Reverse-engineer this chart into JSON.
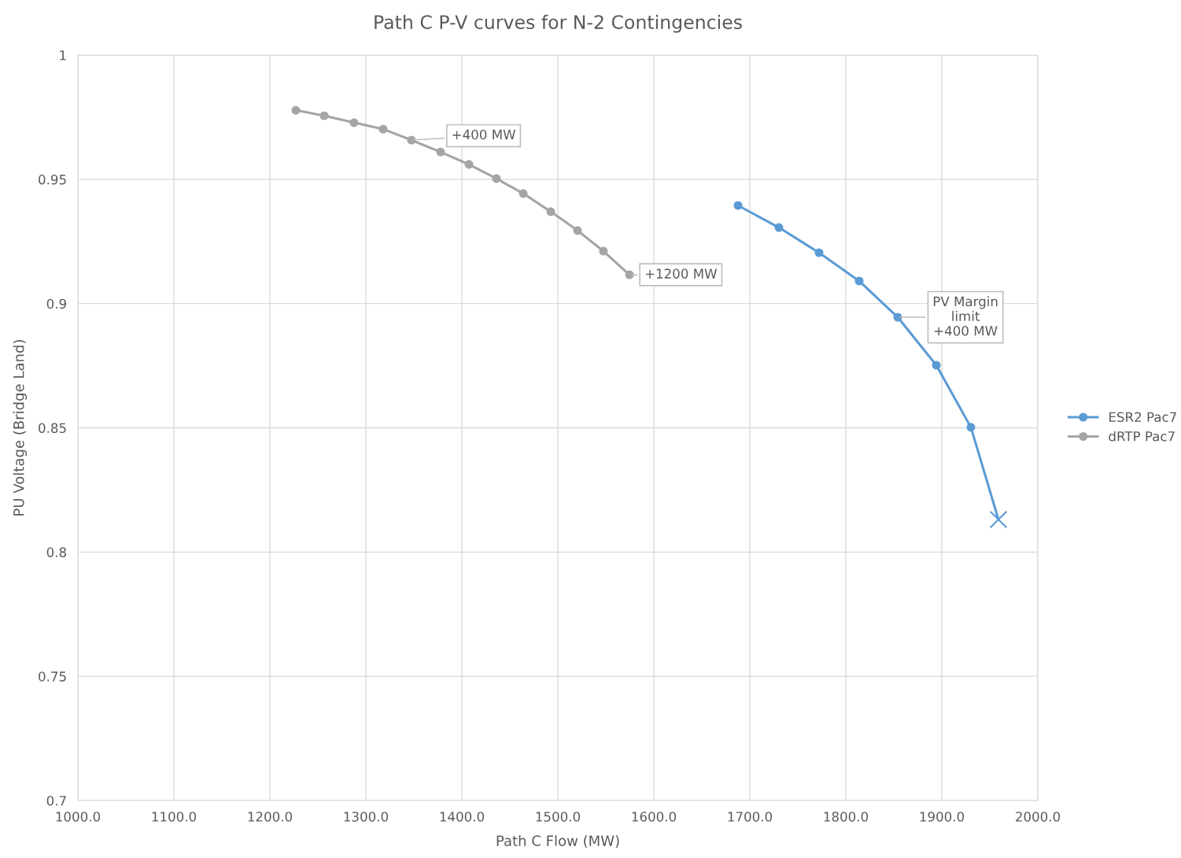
{
  "chart_data": {
    "type": "line",
    "title": "Path C P-V curves for N-2 Contingencies",
    "xlabel": "Path C Flow (MW)",
    "ylabel": "PU Voltage (Bridge Land)",
    "series": [
      {
        "name": "ESR2 Pac7",
        "color": "#5b9bd5",
        "marker": "circle",
        "x": [
          1687.7,
          1730.3,
          1772.1,
          1813.9,
          1854.1,
          1894.3,
          1930.3
        ],
        "values": [
          0.9395,
          0.9306,
          0.9205,
          0.9091,
          0.8945,
          0.8752,
          0.8502
        ]
      },
      {
        "name": "dRTP Pac7",
        "color": "#a5a5a5",
        "marker": "circle",
        "x": [
          1227,
          1256.6,
          1287.7,
          1318,
          1347.5,
          1377.9,
          1407.4,
          1436,
          1464,
          1492.6,
          1520.5,
          1547.5,
          1574.6
        ],
        "values": [
          0.9778,
          0.9756,
          0.9728,
          0.9702,
          0.9658,
          0.961,
          0.956,
          0.9503,
          0.9443,
          0.937,
          0.9294,
          0.9211,
          0.9116
        ]
      },
      {
        "type": "line",
        "color": "#5b9bd5",
        "x": [
          1930.3,
          1959
        ],
        "values": [
          0.8502,
          0.8131
        ]
      },
      {
        "type": "scatter",
        "color": "#5b9bd5",
        "marker": "cross",
        "x": [
          1959
        ],
        "values": [
          0.8131
        ]
      }
    ],
    "annotations": [
      {
        "text": "+400 MW",
        "x": 1347.5,
        "y": 0.9658
      },
      {
        "text": "+1200 MW",
        "x": 1574.6,
        "y": 0.9116
      },
      {
        "text": "PV Margin\nlimit\n+400 MW",
        "x": 1854.1,
        "y": 0.8945
      }
    ],
    "xlim": [
      1000,
      2000
    ],
    "ylim": [
      0.7,
      1
    ],
    "xticks": [
      {
        "value": 1000,
        "label": "1000.0"
      },
      {
        "value": 1100,
        "label": "1100.0"
      },
      {
        "value": 1200,
        "label": "1200.0"
      },
      {
        "value": 1300,
        "label": "1300.0"
      },
      {
        "value": 1400,
        "label": "1400.0"
      },
      {
        "value": 1500,
        "label": "1500.0"
      },
      {
        "value": 1600,
        "label": "1600.0"
      },
      {
        "value": 1700,
        "label": "1700.0"
      },
      {
        "value": 1800,
        "label": "1800.0"
      },
      {
        "value": 1900,
        "label": "1900.0"
      },
      {
        "value": 2000,
        "label": "2000.0"
      }
    ],
    "yticks": [
      0.7,
      0.75,
      0.8,
      0.85,
      0.9,
      0.95,
      1
    ],
    "grid": true,
    "legend": "right",
    "line_style": "solid"
  }
}
